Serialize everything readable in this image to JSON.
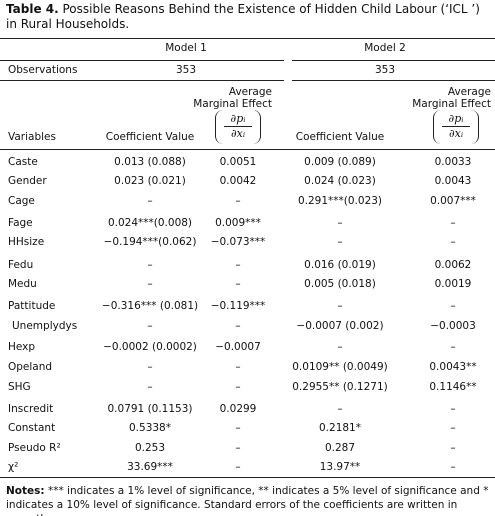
{
  "header": {
    "label": "Table 4.",
    "title": "Possible Reasons Behind the Existence of Hidden Child Labour (‘ICL ’) in Rural Households."
  },
  "models": [
    "Model 1",
    "Model 2"
  ],
  "observations": {
    "label": "Observations",
    "values": [
      "353",
      "353"
    ]
  },
  "columns": {
    "variables": "Variables",
    "coefficient": [
      "Coefficient Value",
      "Coefficient Value"
    ],
    "ame": [
      "Average Marginal Effect",
      "Average Marginal Effect"
    ],
    "fraction": {
      "numerator": "∂pᵢ",
      "denominator": "∂xᵢ"
    }
  },
  "table": {
    "rows": [
      [
        "Caste",
        "0.013 (0.088)",
        "0.0051",
        "0.009 (0.089)",
        "0.0033"
      ],
      [
        "Gender",
        "0.023 (0.021)",
        "0.0042",
        "0.024 (0.023)",
        "0.0043"
      ],
      [
        "Cage",
        "–",
        "–",
        "0.291***(0.023)",
        "0.007***"
      ],
      [
        "Fage",
        "0.024***(0.008)",
        "0.009***",
        "–",
        "–"
      ],
      [
        "HHsize",
        "−0.194***(0.062)",
        "−0.073***",
        "–",
        "–"
      ],
      [
        "Fedu",
        "–",
        "–",
        "0.016 (0.019)",
        "0.0062"
      ],
      [
        "Medu",
        "–",
        "–",
        "0.005 (0.018)",
        "0.0019"
      ],
      [
        "Pattitude",
        "−0.316*** (0.081)",
        "−0.119***",
        "–",
        "–"
      ],
      [
        "Unemplydys",
        "–",
        "–",
        "−0.0007 (0.002)",
        "−0.0003"
      ],
      [
        "Hexp",
        "−0.0002 (0.0002)",
        "−0.0007",
        "–",
        "–"
      ],
      [
        "Opeland",
        "–",
        "–",
        "0.0109** (0.0049)",
        "0.0043**"
      ],
      [
        "SHG",
        "–",
        "–",
        "0.2955** (0.1271)",
        "0.1146**"
      ],
      [
        "Inscredit",
        "0.0791 (0.1153)",
        "0.0299",
        "–",
        "–"
      ],
      [
        "Constant",
        "0.5338*",
        "–",
        "0.2181*",
        "–"
      ],
      [
        "Pseudo R²",
        "0.253",
        "–",
        "0.287",
        "–"
      ],
      [
        "χ²",
        "33.69***",
        "–",
        "13.97**",
        "–"
      ]
    ]
  },
  "notes": {
    "label": "Notes:",
    "text": "*** indicates a 1% level of significance, ** indicates a 5% level of significance and * indicates a 10% level of significance. Standard errors of the coefficients are written in parentheses."
  }
}
